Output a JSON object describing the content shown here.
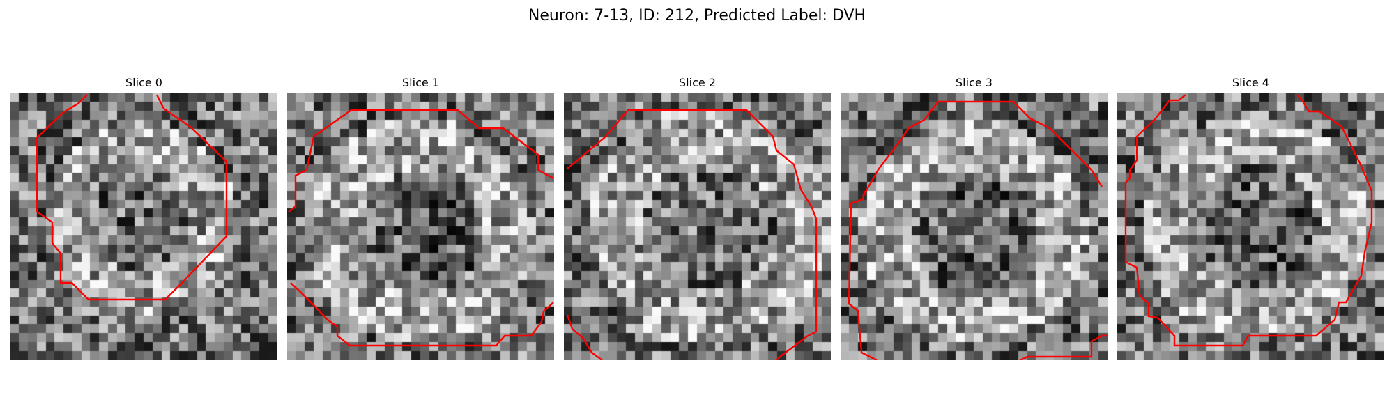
{
  "figure": {
    "title": "Neuron: 7-13, ID: 212, Predicted Label: DVH",
    "contour_color": "#ff0000"
  },
  "slices": [
    {
      "label": "Slice 0"
    },
    {
      "label": "Slice 1"
    },
    {
      "label": "Slice 2"
    },
    {
      "label": "Slice 3"
    },
    {
      "label": "Slice 4"
    }
  ]
}
